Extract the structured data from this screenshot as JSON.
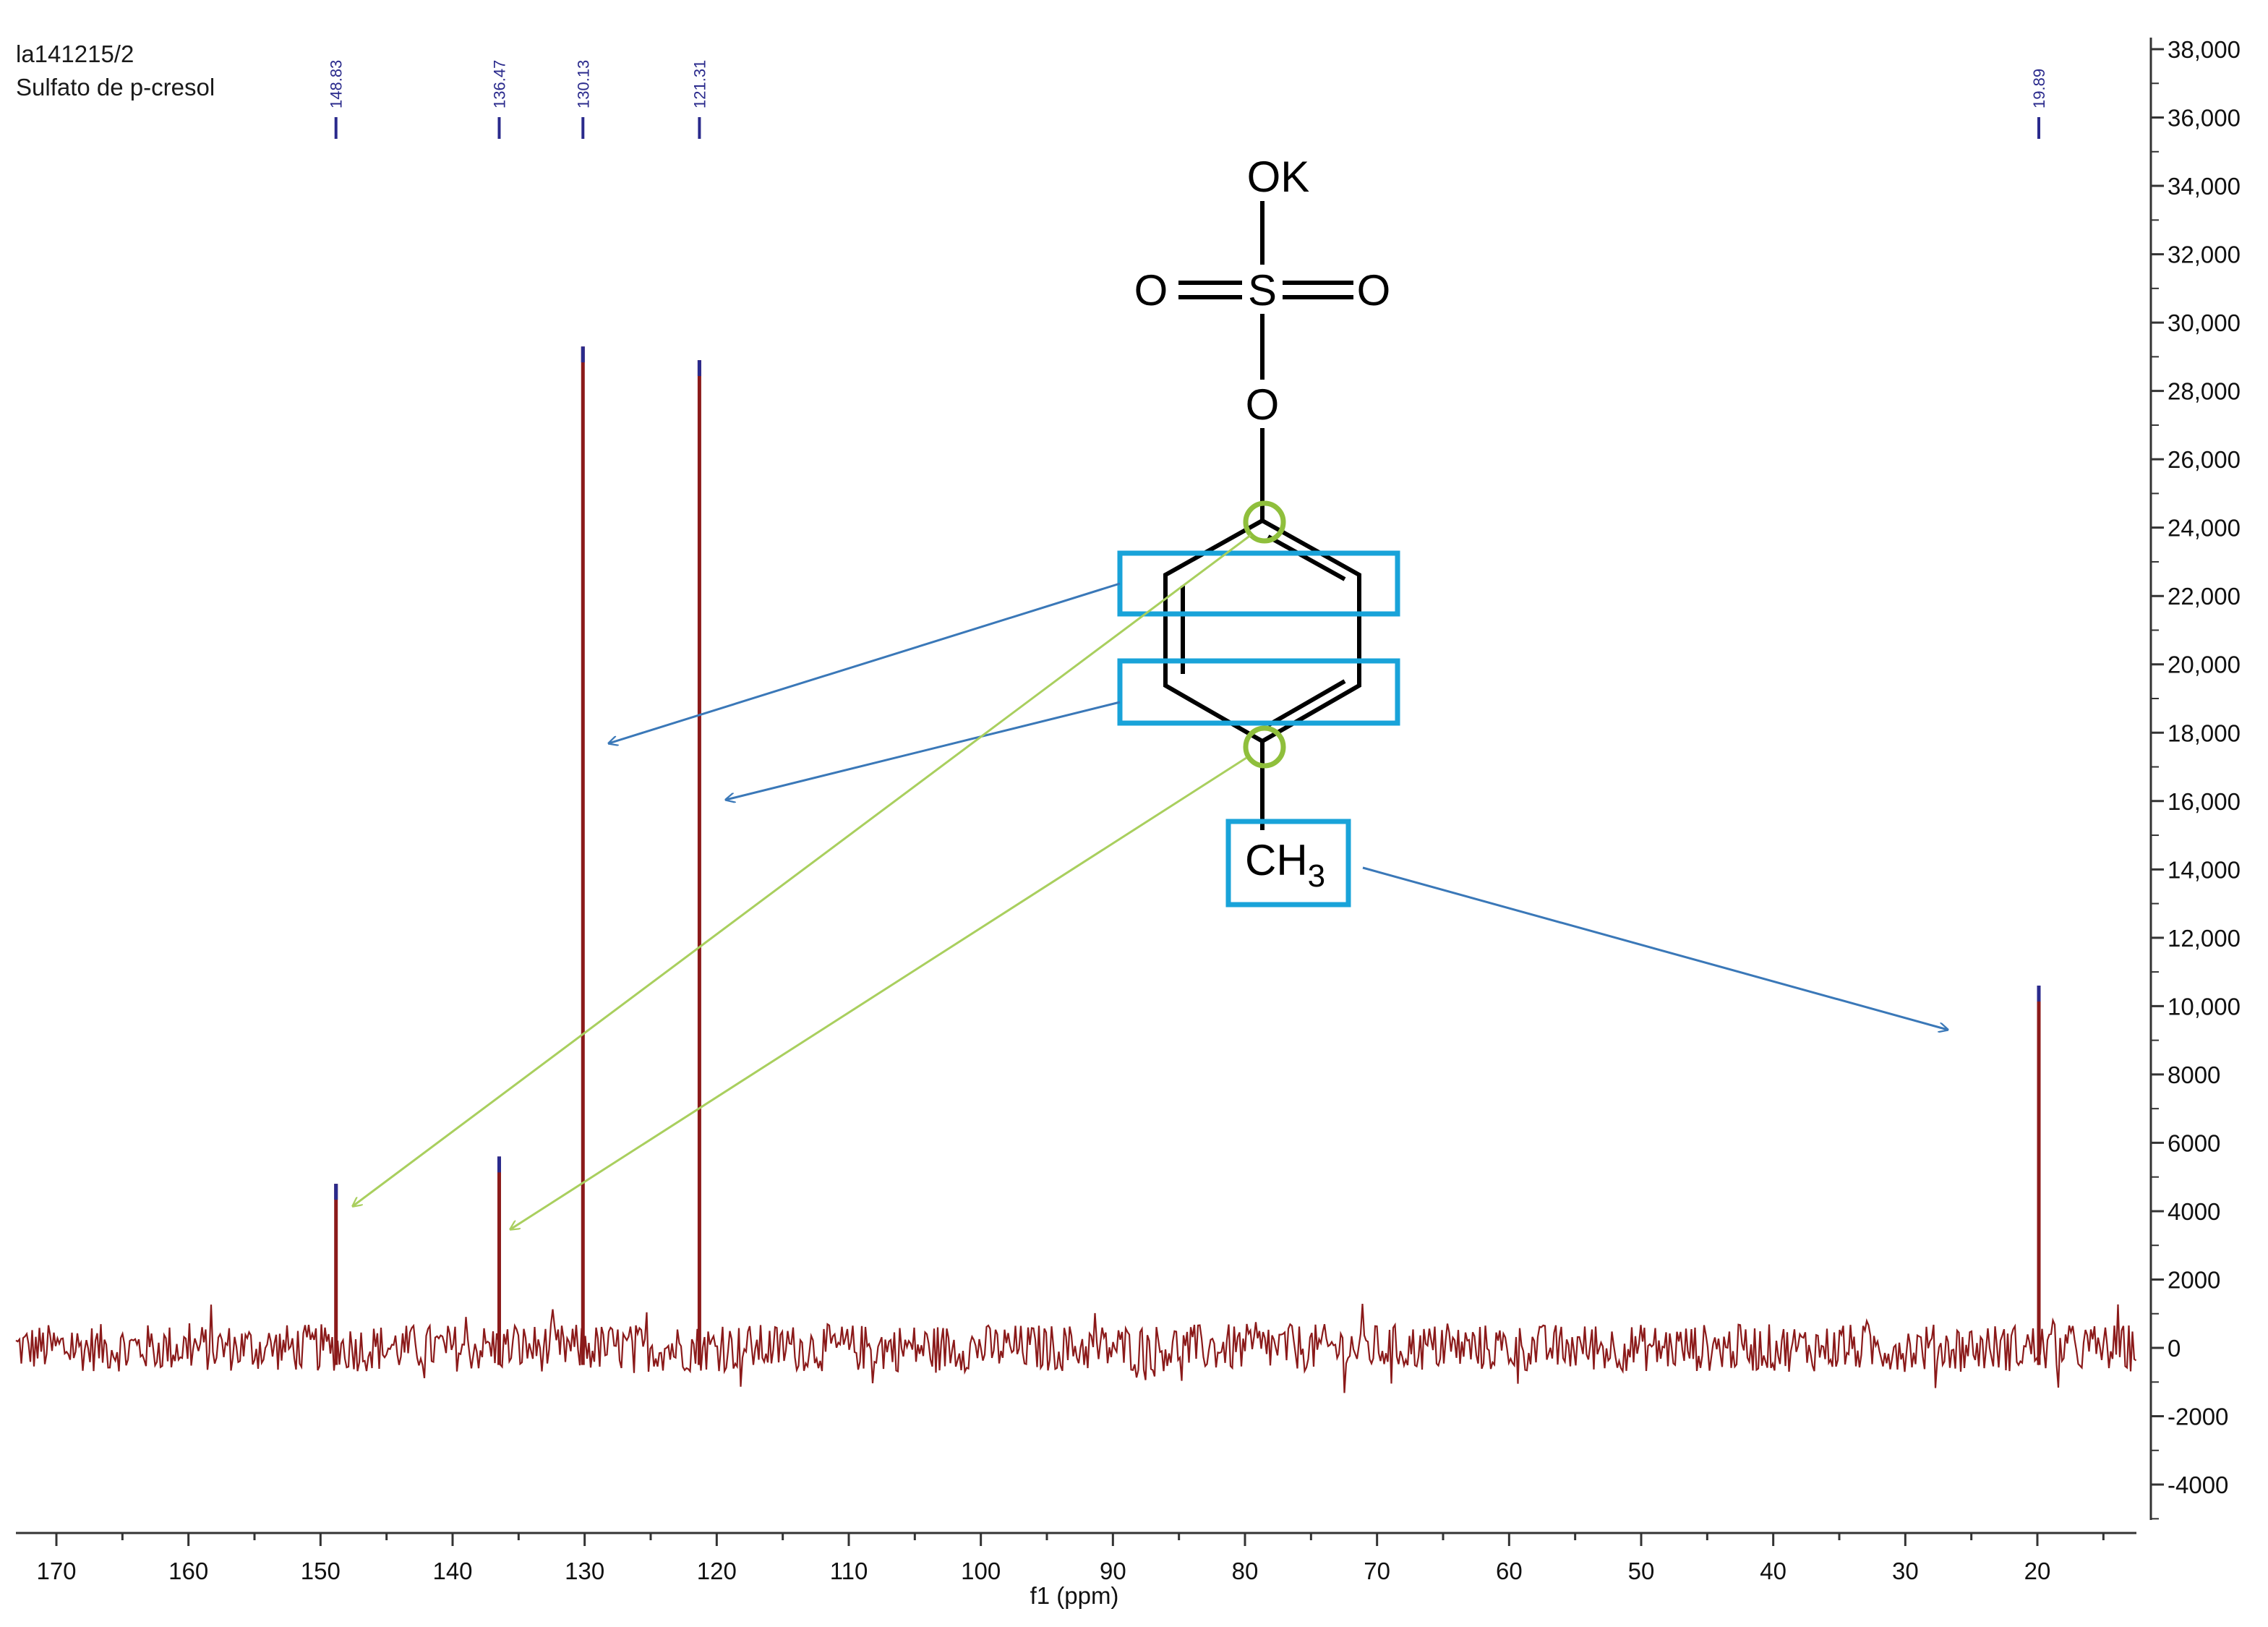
{
  "header": {
    "sample_id": "la141215/2",
    "compound": "Sulfato de p-cresol"
  },
  "colors": {
    "spectrum": "#8b1a1a",
    "peak_label": "#2a2a8c",
    "box": "#19a3d9",
    "circle": "#8fbf3c",
    "arrow_blue": "#3a78b8",
    "arrow_green": "#a9cf5e"
  },
  "chart_data": {
    "type": "line",
    "xlabel": "f1 (ppm)",
    "x_reversed": true,
    "xlim": [
      173,
      12
    ],
    "ylim": [
      -5000,
      38500
    ],
    "x_ticks": [
      170,
      160,
      150,
      140,
      130,
      120,
      110,
      100,
      90,
      80,
      70,
      60,
      50,
      40,
      30,
      20
    ],
    "y_ticks": [
      -4000,
      -2000,
      0,
      2000,
      4000,
      6000,
      8000,
      10000,
      12000,
      14000,
      16000,
      18000,
      20000,
      22000,
      24000,
      26000,
      28000,
      30000,
      32000,
      34000,
      36000,
      38000
    ],
    "y_tick_labels": [
      "-4000",
      "-2000",
      "0",
      "2000",
      "4000",
      "6000",
      "8000",
      "10,000",
      "12,000",
      "14,000",
      "16,000",
      "18,000",
      "20,000",
      "22,000",
      "24,000",
      "26,000",
      "28,000",
      "30,000",
      "32,000",
      "34,000",
      "36,000",
      "38,000"
    ],
    "peaks": [
      {
        "ppm": 148.83,
        "label": "148.83",
        "intensity": 4800
      },
      {
        "ppm": 136.47,
        "label": "136.47",
        "intensity": 5600
      },
      {
        "ppm": 130.13,
        "label": "130.13",
        "intensity": 29300
      },
      {
        "ppm": 121.31,
        "label": "121.31",
        "intensity": 28900
      },
      {
        "ppm": 19.89,
        "label": "19.89",
        "intensity": 10600
      }
    ],
    "noise_amplitude": 700
  },
  "molecule": {
    "atoms": {
      "ok": "OK",
      "s": "S",
      "o_left": "O",
      "o_right": "O",
      "o_ester": "O",
      "ch": "CH",
      "sub3": "3"
    }
  }
}
